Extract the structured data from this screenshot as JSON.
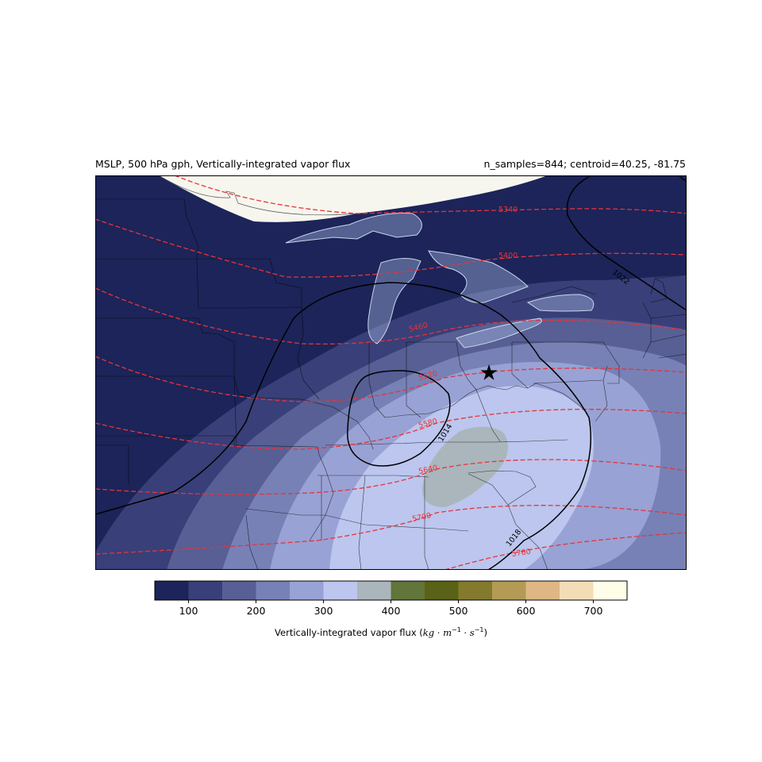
{
  "title_left": "MSLP, 500 hPa gph, Vertically-integrated vapor flux",
  "title_right": "n_samples=844; centroid=40.25, -81.75",
  "map": {
    "marker": "star-icon",
    "mslp_contours": [
      {
        "label": "1014"
      },
      {
        "label": "1018"
      },
      {
        "label": "1022"
      }
    ],
    "gph_contours": [
      {
        "label": "5340"
      },
      {
        "label": "5400"
      },
      {
        "label": "5460"
      },
      {
        "label": "5520"
      },
      {
        "label": "5580"
      },
      {
        "label": "5640"
      },
      {
        "label": "5700"
      },
      {
        "label": "5760"
      }
    ],
    "gph_color": "#e8333a",
    "mslp_color": "#000000"
  },
  "colorbar": {
    "bounds": [
      50,
      100,
      150,
      200,
      250,
      300,
      350,
      400,
      450,
      500,
      550,
      600,
      650,
      700,
      750
    ],
    "colors": [
      "#1c2459",
      "#393f78",
      "#575f94",
      "#7781b6",
      "#99a2d4",
      "#bcc6ee",
      "#aab6bc",
      "#62753a",
      "#5a6217",
      "#847a2d",
      "#b39b56",
      "#dfb785",
      "#f2ddb6",
      "#fefde8"
    ],
    "ticks": [
      "100",
      "200",
      "300",
      "400",
      "500",
      "600",
      "700"
    ],
    "label_prefix": "Vertically-integrated vapor flux (",
    "label_unit": "kg · m",
    "label_exp1": "−1",
    "label_mid": " · s",
    "label_exp2": "−1",
    "label_suffix": ")"
  }
}
